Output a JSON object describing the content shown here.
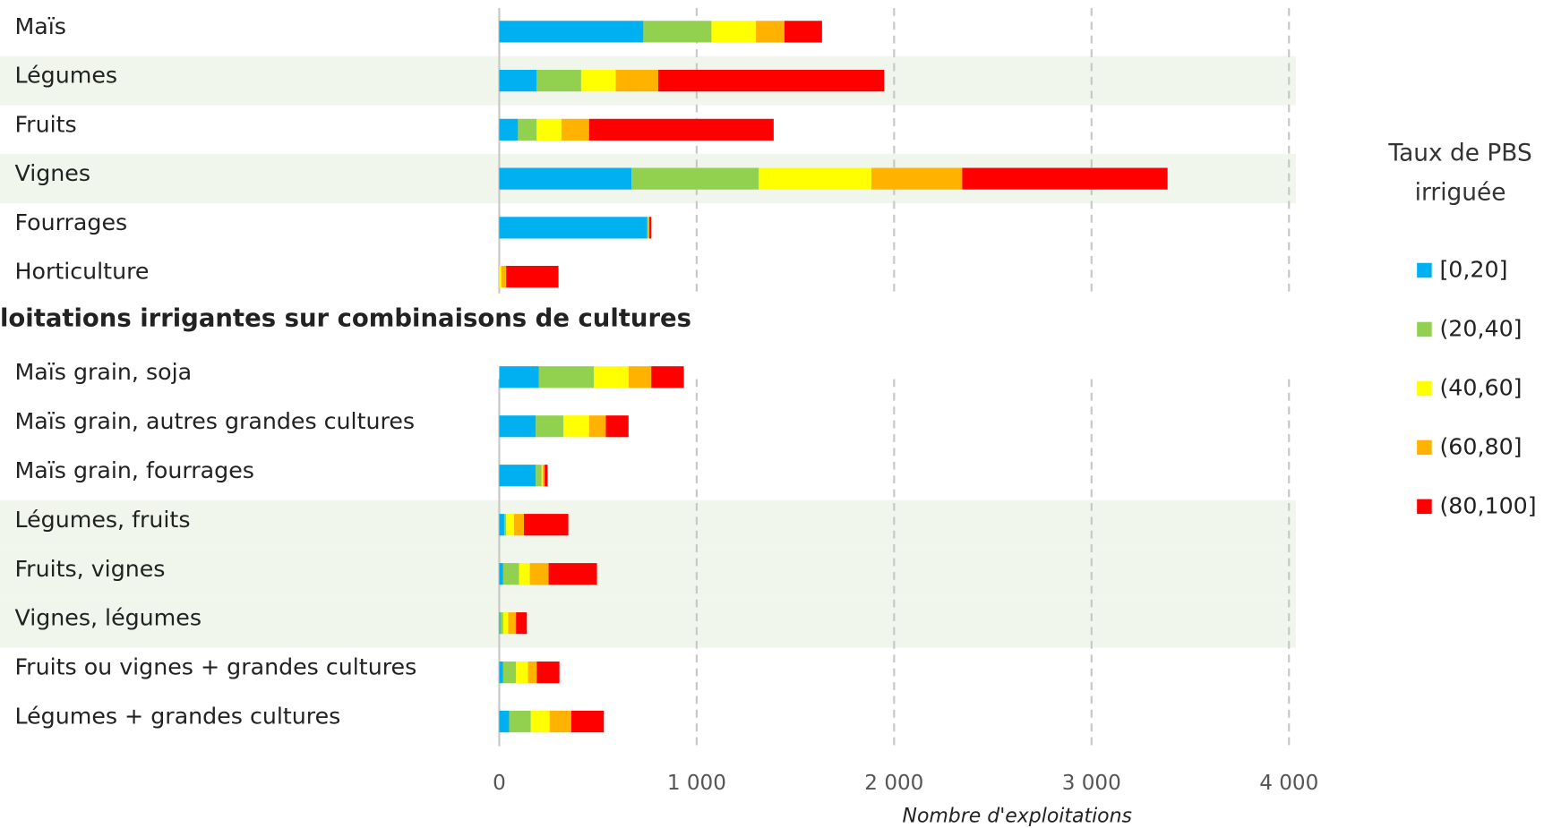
{
  "chart_data": {
    "type": "stacked-barh",
    "section_title": "loitations irrigantes sur combinaisons de cultures",
    "xlabel": "Nombre d'exploitations",
    "legend_title": "Taux de PBS irriguée",
    "categories": [
      "Maïs",
      "Légumes",
      "Fruits",
      "Vignes",
      "Fourrages",
      "Horticulture",
      "Maïs grain, soja",
      "Maïs grain, autres grandes cultures",
      "Maïs grain, fourrages",
      "Légumes, fruits",
      "Fruits, vignes",
      "Vignes, légumes",
      "Fruits ou vignes + grandes cultures",
      "Légumes + grandes cultures"
    ],
    "series": [
      {
        "name": "[0,20]",
        "color": "#00b0f0",
        "values": [
          730,
          190,
          95,
          670,
          750,
          0,
          200,
          185,
          185,
          25,
          20,
          5,
          20,
          50
        ]
      },
      {
        "name": "(20,40]",
        "color": "#92d050",
        "values": [
          345,
          225,
          95,
          645,
          5,
          0,
          280,
          140,
          30,
          10,
          80,
          15,
          65,
          110
        ]
      },
      {
        "name": "(40,60]",
        "color": "#ffff00",
        "values": [
          225,
          175,
          125,
          570,
          0,
          10,
          175,
          130,
          5,
          40,
          55,
          25,
          60,
          95
        ]
      },
      {
        "name": "(60,80]",
        "color": "#ffb300",
        "values": [
          145,
          215,
          140,
          460,
          5,
          25,
          115,
          85,
          10,
          50,
          95,
          40,
          45,
          110
        ]
      },
      {
        "name": "(80,100]",
        "color": "#ff0000",
        "values": [
          190,
          1145,
          935,
          1040,
          10,
          265,
          165,
          115,
          15,
          225,
          245,
          55,
          115,
          165
        ]
      }
    ],
    "xlim": [
      0,
      4000
    ],
    "xticks": [
      0,
      {
        "value": 1000,
        "label": "1 000"
      },
      {
        "value": 2000,
        "label": "2 000"
      },
      {
        "value": 3000,
        "label": "3 000"
      },
      {
        "value": 4000,
        "label": "4 000"
      }
    ],
    "grid": true
  }
}
